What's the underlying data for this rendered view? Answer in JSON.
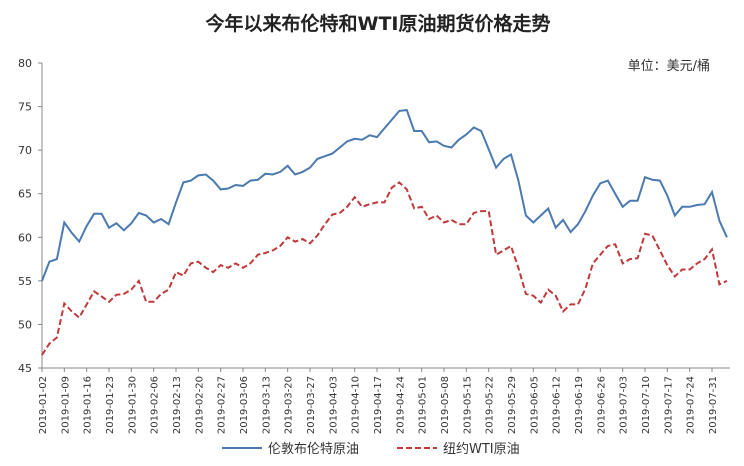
{
  "chart_data": {
    "type": "line",
    "title": "今年以来布伦特和WTI原油期货价格走势",
    "subtitle": "单位：美元/桶",
    "categories": [
      "2019-01-02",
      null,
      null,
      "2019-01-09",
      null,
      null,
      "2019-01-16",
      null,
      null,
      "2019-01-23",
      null,
      null,
      "2019-01-30",
      null,
      null,
      "2019-02-06",
      null,
      null,
      "2019-02-13",
      null,
      null,
      "2019-02-20",
      null,
      null,
      "2019-02-27",
      null,
      null,
      "2019-03-06",
      null,
      null,
      "2019-03-13",
      null,
      null,
      "2019-03-20",
      null,
      null,
      "2019-03-27",
      null,
      null,
      "2019-04-03",
      null,
      null,
      "2019-04-10",
      null,
      null,
      "2019-04-17",
      null,
      null,
      "2019-04-24",
      null,
      null,
      "2019-05-01",
      null,
      null,
      "2019-05-08",
      null,
      null,
      "2019-05-15",
      null,
      null,
      "2019-05-22",
      null,
      null,
      "2019-05-29",
      null,
      null,
      "2019-06-05",
      null,
      null,
      "2019-06-12",
      null,
      null,
      "2019-06-19",
      null,
      null,
      "2019-06-26",
      null,
      null,
      "2019-07-03",
      null,
      null,
      "2019-07-10",
      null,
      null,
      "2019-07-17",
      null,
      null,
      "2019-07-24",
      null,
      null,
      "2019-07-31",
      null,
      null
    ],
    "series": [
      {
        "name": "伦敦布伦特原油",
        "color": "#4a7ab0",
        "dashed": false,
        "values": [
          55,
          57.2,
          57.5,
          61.7,
          60.5,
          59.5,
          61.3,
          62.7,
          62.7,
          61.1,
          61.6,
          60.8,
          61.6,
          62.8,
          62.5,
          61.7,
          62.1,
          61.5,
          64,
          66.3,
          66.5,
          67.1,
          67.2,
          66.5,
          65.5,
          65.6,
          66,
          65.9,
          66.5,
          66.6,
          67.3,
          67.2,
          67.5,
          68.2,
          67.2,
          67.5,
          68,
          69,
          69.3,
          69.6,
          70.3,
          71,
          71.3,
          71.2,
          71.7,
          71.5,
          72.5,
          73.5,
          74.5,
          74.6,
          72.2,
          72.2,
          70.9,
          71,
          70.5,
          70.3,
          71.2,
          71.8,
          72.6,
          72.2,
          70.1,
          68,
          69,
          69.5,
          66.5,
          62.5,
          61.7,
          62.5,
          63.3,
          61.1,
          62,
          60.6,
          61.5,
          63,
          64.8,
          66.2,
          66.5,
          65,
          63.5,
          64.2,
          64.2,
          66.9,
          66.6,
          66.5,
          64.8,
          62.5,
          63.5,
          63.5,
          63.7,
          63.8,
          65.2,
          61.9,
          60
        ]
      },
      {
        "name": "纽约WTI原油",
        "color": "#c0393a",
        "dashed": true,
        "values": [
          46.5,
          47.8,
          48.5,
          52.4,
          51.5,
          50.8,
          52.3,
          53.8,
          53.2,
          52.6,
          53.4,
          53.5,
          54,
          55,
          52.6,
          52.6,
          53.5,
          54,
          56,
          55.6,
          57,
          57.2,
          56.5,
          56,
          56.8,
          56.5,
          57,
          56.5,
          57,
          58,
          58.2,
          58.5,
          59,
          60,
          59.5,
          59.8,
          59.3,
          60.2,
          61.5,
          62.6,
          62.8,
          63.5,
          64.6,
          63.5,
          63.8,
          64,
          64,
          65.7,
          66.3,
          65.5,
          63.3,
          63.5,
          62.1,
          62.5,
          61.7,
          62,
          61.5,
          61.5,
          62.8,
          63,
          63,
          58,
          58.5,
          59,
          56.5,
          53.5,
          53.3,
          52.5,
          54,
          53.3,
          51.5,
          52.3,
          52.3,
          54.1,
          57,
          58,
          59,
          59.2,
          57,
          57.5,
          57.6,
          60.4,
          60.2,
          58.5,
          56.8,
          55.5,
          56.3,
          56.3,
          57,
          57.5,
          58.6,
          54.6,
          55
        ]
      }
    ],
    "ylim": [
      45,
      80
    ],
    "yticks": [
      45,
      50,
      55,
      60,
      65,
      70,
      75,
      80
    ],
    "grid": false
  }
}
